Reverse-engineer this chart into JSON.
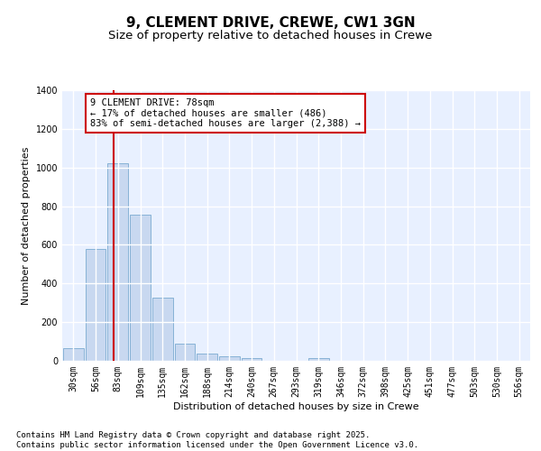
{
  "title_line1": "9, CLEMENT DRIVE, CREWE, CW1 3GN",
  "title_line2": "Size of property relative to detached houses in Crewe",
  "xlabel": "Distribution of detached houses by size in Crewe",
  "ylabel": "Number of detached properties",
  "categories": [
    "30sqm",
    "56sqm",
    "83sqm",
    "109sqm",
    "135sqm",
    "162sqm",
    "188sqm",
    "214sqm",
    "240sqm",
    "267sqm",
    "293sqm",
    "319sqm",
    "346sqm",
    "372sqm",
    "398sqm",
    "425sqm",
    "451sqm",
    "477sqm",
    "503sqm",
    "530sqm",
    "556sqm"
  ],
  "values": [
    65,
    580,
    1020,
    755,
    325,
    90,
    37,
    22,
    14,
    0,
    0,
    16,
    0,
    0,
    0,
    0,
    0,
    0,
    0,
    0,
    0
  ],
  "bar_color": "#c8d8f0",
  "bar_edge_color": "#7aaad0",
  "bg_color": "#e8f0ff",
  "grid_color": "#ffffff",
  "annotation_box_color": "#cc0000",
  "property_line_color": "#cc0000",
  "annotation_text": "9 CLEMENT DRIVE: 78sqm\n← 17% of detached houses are smaller (486)\n83% of semi-detached houses are larger (2,388) →",
  "ylim": [
    0,
    1400
  ],
  "yticks": [
    0,
    200,
    400,
    600,
    800,
    1000,
    1200,
    1400
  ],
  "footer_line1": "Contains HM Land Registry data © Crown copyright and database right 2025.",
  "footer_line2": "Contains public sector information licensed under the Open Government Licence v3.0.",
  "title_fontsize": 11,
  "subtitle_fontsize": 9.5,
  "tick_fontsize": 7,
  "ylabel_fontsize": 8,
  "xlabel_fontsize": 8,
  "footer_fontsize": 6.5,
  "annot_fontsize": 7.5
}
